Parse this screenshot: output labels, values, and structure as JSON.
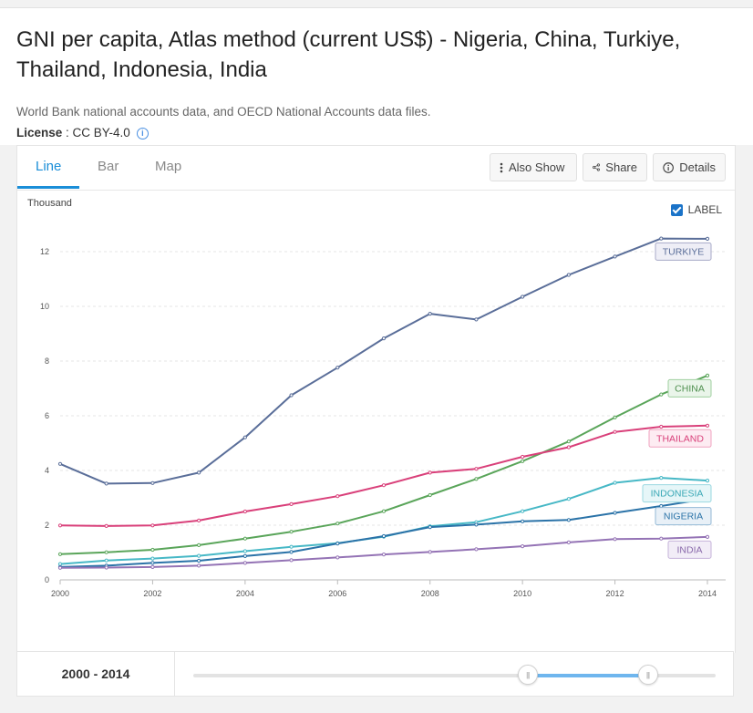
{
  "header": {
    "title": "GNI per capita, Atlas method (current US$) - Nigeria, China, Turkiye, Thailand, Indonesia, India",
    "source": "World Bank national accounts data, and OECD National Accounts data files.",
    "license_label": "License",
    "license_value": " : CC BY-4.0"
  },
  "tabs": [
    {
      "label": "Line",
      "active": true
    },
    {
      "label": "Bar",
      "active": false
    },
    {
      "label": "Map",
      "active": false
    }
  ],
  "toolbar": {
    "also_show": "Also Show",
    "share": "Share",
    "details": "Details"
  },
  "label_toggle": {
    "label": "LABEL",
    "checked": true
  },
  "footer": {
    "range": "2000 - 2014",
    "range_start_fraction": 0.64,
    "range_end_fraction": 0.87
  },
  "chart_data": {
    "type": "line",
    "unit_label": "Thousand",
    "x": [
      2000,
      2001,
      2002,
      2003,
      2004,
      2005,
      2006,
      2007,
      2008,
      2009,
      2010,
      2011,
      2012,
      2013,
      2014
    ],
    "x_ticks": [
      "2000",
      "2002",
      "2004",
      "2006",
      "2008",
      "2010",
      "2012",
      "2014"
    ],
    "y_ticks": [
      "0",
      "2",
      "4",
      "6",
      "8",
      "10",
      "12"
    ],
    "ylim": [
      0,
      12.8
    ],
    "grid": true,
    "series": [
      {
        "name": "TURKIYE",
        "color": "#5a6e99",
        "label_bg": "#eeeef6",
        "label_border": "#a8aac8",
        "label_color": "#5a6e99",
        "values": [
          4.24,
          3.52,
          3.54,
          3.92,
          5.21,
          6.75,
          7.76,
          8.83,
          9.73,
          9.52,
          10.35,
          11.15,
          11.82,
          12.48,
          12.47
        ]
      },
      {
        "name": "CHINA",
        "color": "#5aa55a",
        "label_bg": "#eaf5ea",
        "label_border": "#9fcf9f",
        "label_color": "#4e8f4e",
        "values": [
          0.94,
          1.01,
          1.1,
          1.27,
          1.51,
          1.76,
          2.06,
          2.51,
          3.1,
          3.69,
          4.34,
          5.06,
          5.94,
          6.78,
          7.47
        ]
      },
      {
        "name": "THAILAND",
        "color": "#d9407a",
        "label_bg": "#fdecf2",
        "label_border": "#f0a3c0",
        "label_color": "#d9407a",
        "values": [
          1.99,
          1.97,
          1.99,
          2.17,
          2.5,
          2.77,
          3.06,
          3.46,
          3.92,
          4.06,
          4.5,
          4.85,
          5.41,
          5.6,
          5.64
        ]
      },
      {
        "name": "INDONESIA",
        "color": "#47b8c6",
        "label_bg": "#e6f6f8",
        "label_border": "#9ad8e0",
        "label_color": "#3aa8b6",
        "values": [
          0.58,
          0.71,
          0.78,
          0.88,
          1.05,
          1.21,
          1.34,
          1.58,
          1.96,
          2.11,
          2.51,
          2.96,
          3.55,
          3.73,
          3.63
        ]
      },
      {
        "name": "NIGERIA",
        "color": "#2b73a8",
        "label_bg": "#e8f0f7",
        "label_border": "#94b9d6",
        "label_color": "#2b73a8",
        "values": [
          0.47,
          0.52,
          0.62,
          0.7,
          0.87,
          1.02,
          1.33,
          1.6,
          1.93,
          2.02,
          2.14,
          2.19,
          2.45,
          2.7,
          2.97
        ]
      },
      {
        "name": "INDIA",
        "color": "#9473b5",
        "label_bg": "#f2edf7",
        "label_border": "#c6b3da",
        "label_color": "#8a6aab",
        "values": [
          0.44,
          0.45,
          0.47,
          0.52,
          0.62,
          0.72,
          0.82,
          0.93,
          1.02,
          1.12,
          1.23,
          1.37,
          1.49,
          1.51,
          1.57
        ]
      }
    ]
  }
}
